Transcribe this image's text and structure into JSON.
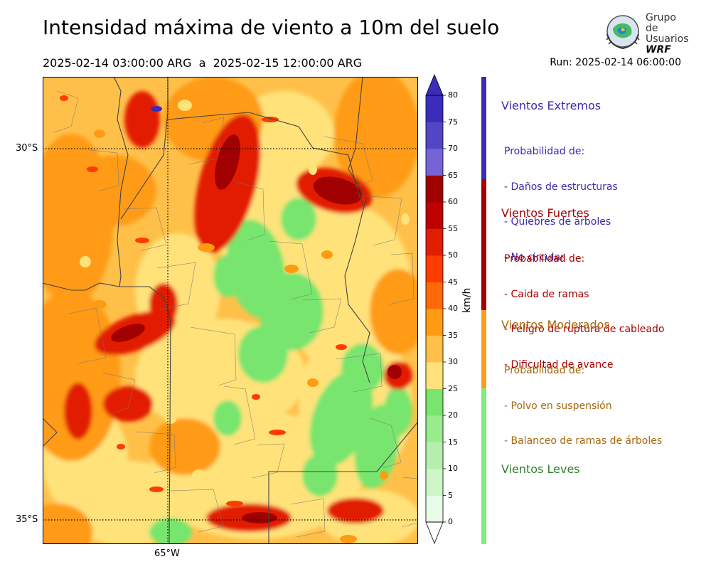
{
  "header": {
    "title": "Intensidad máxima de viento a 10m del suelo",
    "period": "2025-02-14 03:00:00 ARG  a  2025-02-15 12:00:00 ARG",
    "run": "Run: 2025-02-14 06:00:00"
  },
  "logo": {
    "line1": "Grupo de",
    "line2": "Usuarios",
    "line3": "WRF"
  },
  "map": {
    "lat_labels": [
      "30°S",
      "35°S"
    ],
    "lon_labels": [
      "65°W"
    ],
    "graticule_style": "dotted"
  },
  "colorbar": {
    "unit": "km/h",
    "ticks": [
      "0",
      "5",
      "10",
      "15",
      "20",
      "25",
      "30",
      "35",
      "40",
      "45",
      "50",
      "55",
      "60",
      "65",
      "70",
      "75",
      "80"
    ],
    "colors": [
      "#e8fbe6",
      "#cdf5c8",
      "#b4f0ac",
      "#98ec8e",
      "#78e56e",
      "#ffe27a",
      "#ffc04a",
      "#ff9b12",
      "#ff6a06",
      "#ff3c00",
      "#e21e00",
      "#c00000",
      "#a00000",
      "#7763d8",
      "#5346c6",
      "#3a2dbb"
    ],
    "extend": "both"
  },
  "legend": [
    {
      "title": "Vientos Extremos",
      "color": "#3a2bb2",
      "lines": [
        "Probabilidad de:",
        "- Daños de estructuras",
        "- Quiebres de árboles",
        "- No circular"
      ]
    },
    {
      "title": "Vientos Fuertes",
      "color": "#a40000",
      "lines": [
        "Probabilidad de:",
        "- Caida de ramas",
        "- Peligro de ruptura de cableado",
        "- Dificultad de avance"
      ]
    },
    {
      "title": "Vientos Moderados",
      "color": "#a8670a",
      "lines": [
        "Probabilidad de:",
        "- Polvo en suspensión",
        "- Balanceo de ramas de árboles"
      ]
    },
    {
      "title": "Vientos Leves",
      "color": "#2e7d2e",
      "lines": []
    }
  ],
  "legend_bar_colors": [
    "#3c2bb5",
    "#a30000",
    "#ff9e1a",
    "#7df07a"
  ]
}
